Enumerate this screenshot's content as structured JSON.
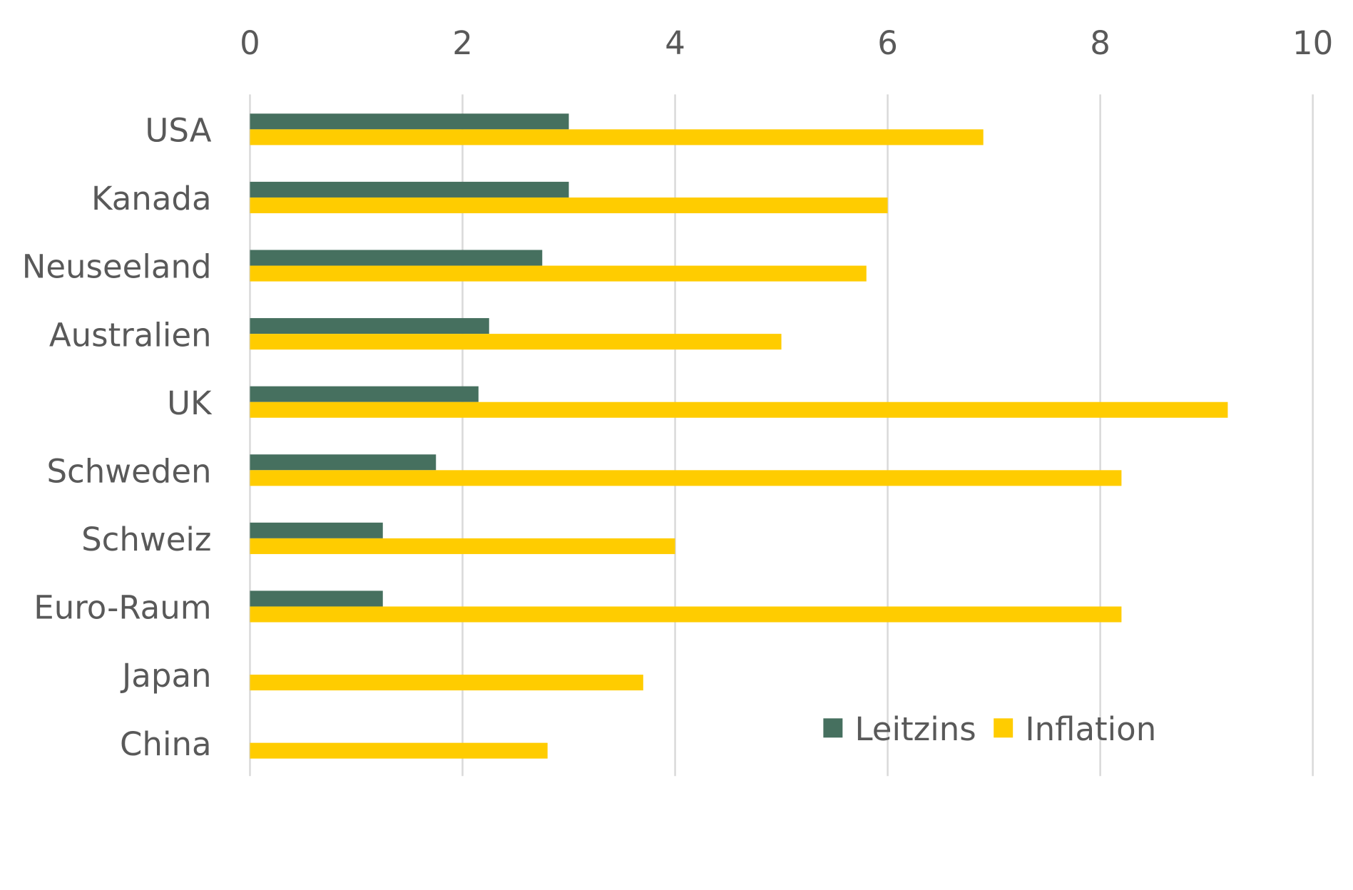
{
  "chart_data": {
    "type": "bar",
    "orientation": "horizontal",
    "categories": [
      "USA",
      "Kanada",
      "Neuseeland",
      "Australien",
      "UK",
      "Schweden",
      "Schweiz",
      "Euro-Raum",
      "Japan",
      "China"
    ],
    "series": [
      {
        "name": "Leitzins",
        "color": "#46705f",
        "values": [
          3.0,
          3.0,
          2.75,
          2.25,
          2.15,
          1.75,
          1.25,
          1.25,
          0,
          0
        ]
      },
      {
        "name": "Inflation",
        "color": "#ffcc00",
        "values": [
          6.9,
          6.0,
          5.8,
          5.0,
          9.2,
          8.2,
          4.0,
          8.2,
          3.7,
          2.8
        ]
      }
    ],
    "xlim": [
      0,
      10
    ],
    "x_ticks": [
      "0",
      "2",
      "4",
      "6",
      "8",
      "10"
    ],
    "x_axis_position": "top",
    "grid": true,
    "legend_position": "bottom-right"
  }
}
